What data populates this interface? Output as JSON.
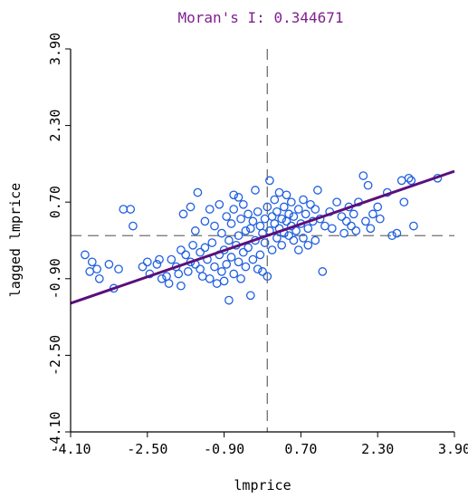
{
  "chart_data": {
    "type": "scatter",
    "title": "Moran's I: 0.344671",
    "xlabel": "lmprice",
    "ylabel": "lagged lmprice",
    "xlim": [
      -4.1,
      3.9
    ],
    "ylim": [
      -4.1,
      3.9
    ],
    "xticks": [
      "-4.10",
      "-2.50",
      "-0.90",
      "0.70",
      "2.30",
      "3.90"
    ],
    "yticks": [
      "-4.10",
      "-2.50",
      "-0.90",
      "0.70",
      "2.30",
      "3.90"
    ],
    "grid": false,
    "mean_lines": {
      "x": 0.0,
      "y": 0.0,
      "style": "dashed"
    },
    "regression_line": {
      "slope": 0.344671,
      "intercept": 0.0,
      "color": "#5b0f7a"
    },
    "colors": {
      "points": "#1f5fe0",
      "line": "#5b0f7a",
      "title": "#7f1f8f",
      "axis": "#000000",
      "dash": "#707070"
    },
    "points": [
      [
        -3.8,
        -0.4
      ],
      [
        -3.7,
        -0.75
      ],
      [
        -3.65,
        -0.55
      ],
      [
        -3.55,
        -0.7
      ],
      [
        -3.5,
        -0.9
      ],
      [
        -3.3,
        -0.6
      ],
      [
        -3.2,
        -1.1
      ],
      [
        -3.1,
        -0.7
      ],
      [
        -3.0,
        0.55
      ],
      [
        -2.85,
        0.55
      ],
      [
        -2.8,
        0.2
      ],
      [
        -2.6,
        -0.65
      ],
      [
        -2.5,
        -0.55
      ],
      [
        -2.45,
        -0.8
      ],
      [
        -2.3,
        -0.6
      ],
      [
        -2.25,
        -0.5
      ],
      [
        -2.2,
        -0.9
      ],
      [
        -2.1,
        -0.85
      ],
      [
        -2.05,
        -1.0
      ],
      [
        -2.0,
        -0.5
      ],
      [
        -1.9,
        -0.65
      ],
      [
        -1.85,
        -0.8
      ],
      [
        -1.8,
        -1.05
      ],
      [
        -1.8,
        -0.3
      ],
      [
        -1.75,
        0.45
      ],
      [
        -1.7,
        -0.4
      ],
      [
        -1.65,
        -0.75
      ],
      [
        -1.6,
        0.6
      ],
      [
        -1.6,
        -0.55
      ],
      [
        -1.55,
        -0.2
      ],
      [
        -1.5,
        -0.6
      ],
      [
        -1.5,
        0.1
      ],
      [
        -1.45,
        0.9
      ],
      [
        -1.4,
        -0.35
      ],
      [
        -1.4,
        -0.7
      ],
      [
        -1.35,
        -0.85
      ],
      [
        -1.3,
        -0.25
      ],
      [
        -1.3,
        0.3
      ],
      [
        -1.25,
        -0.5
      ],
      [
        -1.2,
        -0.9
      ],
      [
        -1.2,
        0.55
      ],
      [
        -1.15,
        -0.15
      ],
      [
        -1.1,
        -0.65
      ],
      [
        -1.1,
        0.2
      ],
      [
        -1.05,
        -1.0
      ],
      [
        -1.0,
        -0.4
      ],
      [
        -1.0,
        0.65
      ],
      [
        -0.95,
        -0.75
      ],
      [
        -0.95,
        0.05
      ],
      [
        -0.9,
        -0.95
      ],
      [
        -0.9,
        -0.3
      ],
      [
        -0.85,
        0.4
      ],
      [
        -0.85,
        -0.6
      ],
      [
        -0.8,
        -1.35
      ],
      [
        -0.8,
        -0.1
      ],
      [
        -0.75,
        -0.45
      ],
      [
        -0.75,
        0.25
      ],
      [
        -0.7,
        0.55
      ],
      [
        -0.7,
        -0.8
      ],
      [
        -0.7,
        0.85
      ],
      [
        -0.65,
        -0.2
      ],
      [
        -0.6,
        -0.55
      ],
      [
        -0.6,
        0.8
      ],
      [
        -0.6,
        0.0
      ],
      [
        -0.55,
        0.35
      ],
      [
        -0.55,
        -0.9
      ],
      [
        -0.5,
        -0.35
      ],
      [
        -0.5,
        0.65
      ],
      [
        -0.45,
        0.1
      ],
      [
        -0.45,
        -0.65
      ],
      [
        -0.4,
        -0.25
      ],
      [
        -0.4,
        0.45
      ],
      [
        -0.35,
        0.15
      ],
      [
        -0.35,
        -1.25
      ],
      [
        -0.3,
        -0.5
      ],
      [
        -0.3,
        0.3
      ],
      [
        -0.25,
        -0.1
      ],
      [
        -0.25,
        0.95
      ],
      [
        -0.2,
        -0.7
      ],
      [
        -0.2,
        0.5
      ],
      [
        -0.15,
        0.2
      ],
      [
        -0.15,
        -0.4
      ],
      [
        -0.1,
        0.05
      ],
      [
        -0.1,
        -0.75
      ],
      [
        -0.05,
        0.35
      ],
      [
        -0.05,
        -0.15
      ],
      [
        0.0,
        0.6
      ],
      [
        0.0,
        -0.85
      ],
      [
        0.05,
        0.1
      ],
      [
        0.05,
        1.15
      ],
      [
        0.1,
        -0.3
      ],
      [
        0.1,
        0.4
      ],
      [
        0.15,
        0.25
      ],
      [
        0.15,
        0.75
      ],
      [
        0.2,
        -0.05
      ],
      [
        0.2,
        0.5
      ],
      [
        0.25,
        0.15
      ],
      [
        0.25,
        0.9
      ],
      [
        0.3,
        0.35
      ],
      [
        0.3,
        -0.2
      ],
      [
        0.35,
        0.6
      ],
      [
        0.35,
        0.05
      ],
      [
        0.4,
        0.3
      ],
      [
        0.4,
        0.85
      ],
      [
        0.45,
        0.45
      ],
      [
        0.45,
        0.0
      ],
      [
        0.5,
        0.2
      ],
      [
        0.5,
        0.7
      ],
      [
        0.55,
        -0.1
      ],
      [
        0.55,
        0.4
      ],
      [
        0.6,
        0.1
      ],
      [
        0.65,
        0.55
      ],
      [
        0.65,
        -0.3
      ],
      [
        0.7,
        0.25
      ],
      [
        0.75,
        0.75
      ],
      [
        0.75,
        -0.05
      ],
      [
        0.8,
        0.45
      ],
      [
        0.85,
        0.15
      ],
      [
        0.85,
        -0.2
      ],
      [
        0.9,
        0.65
      ],
      [
        0.95,
        0.3
      ],
      [
        1.0,
        0.55
      ],
      [
        1.0,
        -0.1
      ],
      [
        1.05,
        0.95
      ],
      [
        1.1,
        0.35
      ],
      [
        1.15,
        -0.75
      ],
      [
        1.2,
        0.2
      ],
      [
        1.3,
        0.5
      ],
      [
        1.35,
        0.15
      ],
      [
        1.45,
        0.7
      ],
      [
        1.55,
        0.4
      ],
      [
        1.6,
        0.05
      ],
      [
        1.65,
        0.3
      ],
      [
        1.7,
        0.6
      ],
      [
        1.75,
        0.2
      ],
      [
        1.8,
        0.45
      ],
      [
        1.85,
        0.1
      ],
      [
        1.9,
        0.7
      ],
      [
        2.0,
        1.25
      ],
      [
        2.05,
        0.3
      ],
      [
        2.1,
        1.05
      ],
      [
        2.15,
        0.15
      ],
      [
        2.2,
        0.45
      ],
      [
        2.3,
        0.6
      ],
      [
        2.35,
        0.35
      ],
      [
        2.5,
        0.9
      ],
      [
        2.6,
        0.0
      ],
      [
        2.7,
        0.05
      ],
      [
        2.8,
        1.15
      ],
      [
        2.85,
        0.7
      ],
      [
        2.95,
        1.2
      ],
      [
        3.0,
        1.15
      ],
      [
        3.05,
        0.2
      ],
      [
        3.55,
        1.2
      ]
    ]
  }
}
